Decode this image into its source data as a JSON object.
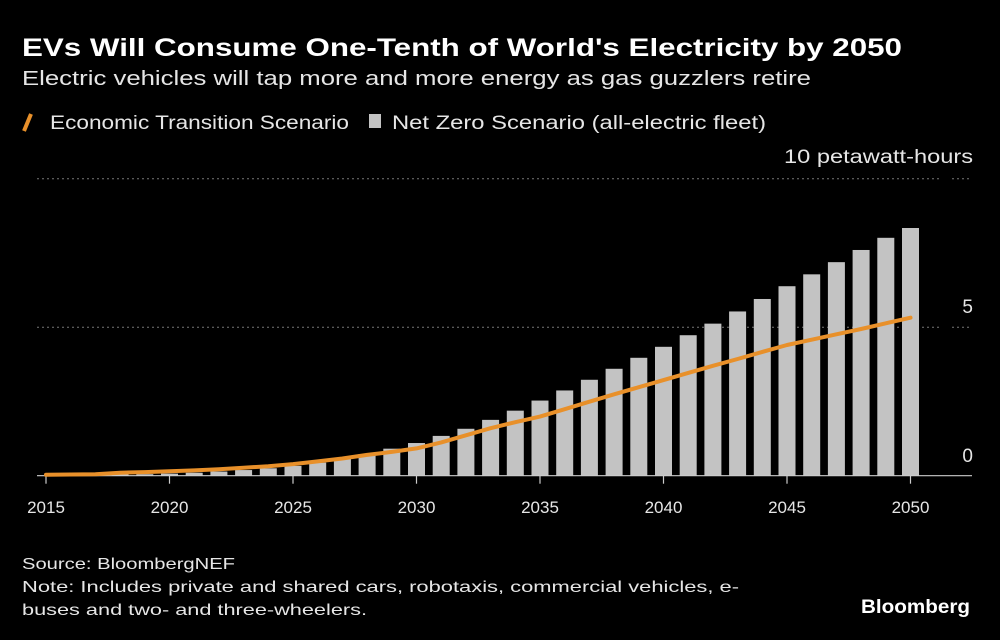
{
  "chart_data": {
    "type": "bar",
    "title": "EVs Will Consume One-Tenth of World's Electricity by 2050",
    "subtitle": "Electric vehicles will tap more and more energy as gas guzzlers retire",
    "unit_label": "10 petawatt-hours",
    "ylim": [
      0,
      10
    ],
    "yticks": [
      "0",
      "5",
      "10"
    ],
    "xticks": [
      "2015",
      "2020",
      "2025",
      "2030",
      "2035",
      "2040",
      "2045",
      "2050"
    ],
    "grid": true,
    "legend_placement": "top-left",
    "x": [
      2015,
      2016,
      2017,
      2018,
      2019,
      2020,
      2021,
      2022,
      2023,
      2024,
      2025,
      2026,
      2027,
      2028,
      2029,
      2030,
      2031,
      2032,
      2033,
      2034,
      2035,
      2036,
      2037,
      2038,
      2039,
      2040,
      2041,
      2042,
      2043,
      2044,
      2045,
      2046,
      2047,
      2048,
      2049,
      2050
    ],
    "series": [
      {
        "name": "Net Zero Scenario (all-electric fleet)",
        "type": "bar",
        "color": "#c3c3c3",
        "values": [
          0.01,
          0.01,
          0.02,
          0.04,
          0.05,
          0.07,
          0.1,
          0.14,
          0.19,
          0.25,
          0.33,
          0.44,
          0.58,
          0.73,
          0.91,
          1.1,
          1.34,
          1.58,
          1.88,
          2.19,
          2.53,
          2.87,
          3.23,
          3.6,
          3.97,
          4.34,
          4.73,
          5.12,
          5.53,
          5.95,
          6.38,
          6.78,
          7.19,
          7.6,
          8.01,
          8.34
        ]
      },
      {
        "name": "Economic Transition Scenario",
        "type": "line",
        "color": "#e8902a",
        "values": [
          0.03,
          0.04,
          0.05,
          0.1,
          0.12,
          0.15,
          0.18,
          0.22,
          0.27,
          0.32,
          0.39,
          0.48,
          0.58,
          0.7,
          0.8,
          0.92,
          1.12,
          1.36,
          1.6,
          1.8,
          1.99,
          2.24,
          2.49,
          2.74,
          2.98,
          3.22,
          3.46,
          3.7,
          3.93,
          4.17,
          4.4,
          4.58,
          4.76,
          4.94,
          5.13,
          5.32
        ]
      }
    ]
  },
  "footer": {
    "source": "Source: BloombergNEF",
    "note_line1": "Note: Includes private and shared cars, robotaxis, commercial vehicles, e-",
    "note_line2": "buses and two- and three-wheelers.",
    "logo": "Bloomberg"
  }
}
